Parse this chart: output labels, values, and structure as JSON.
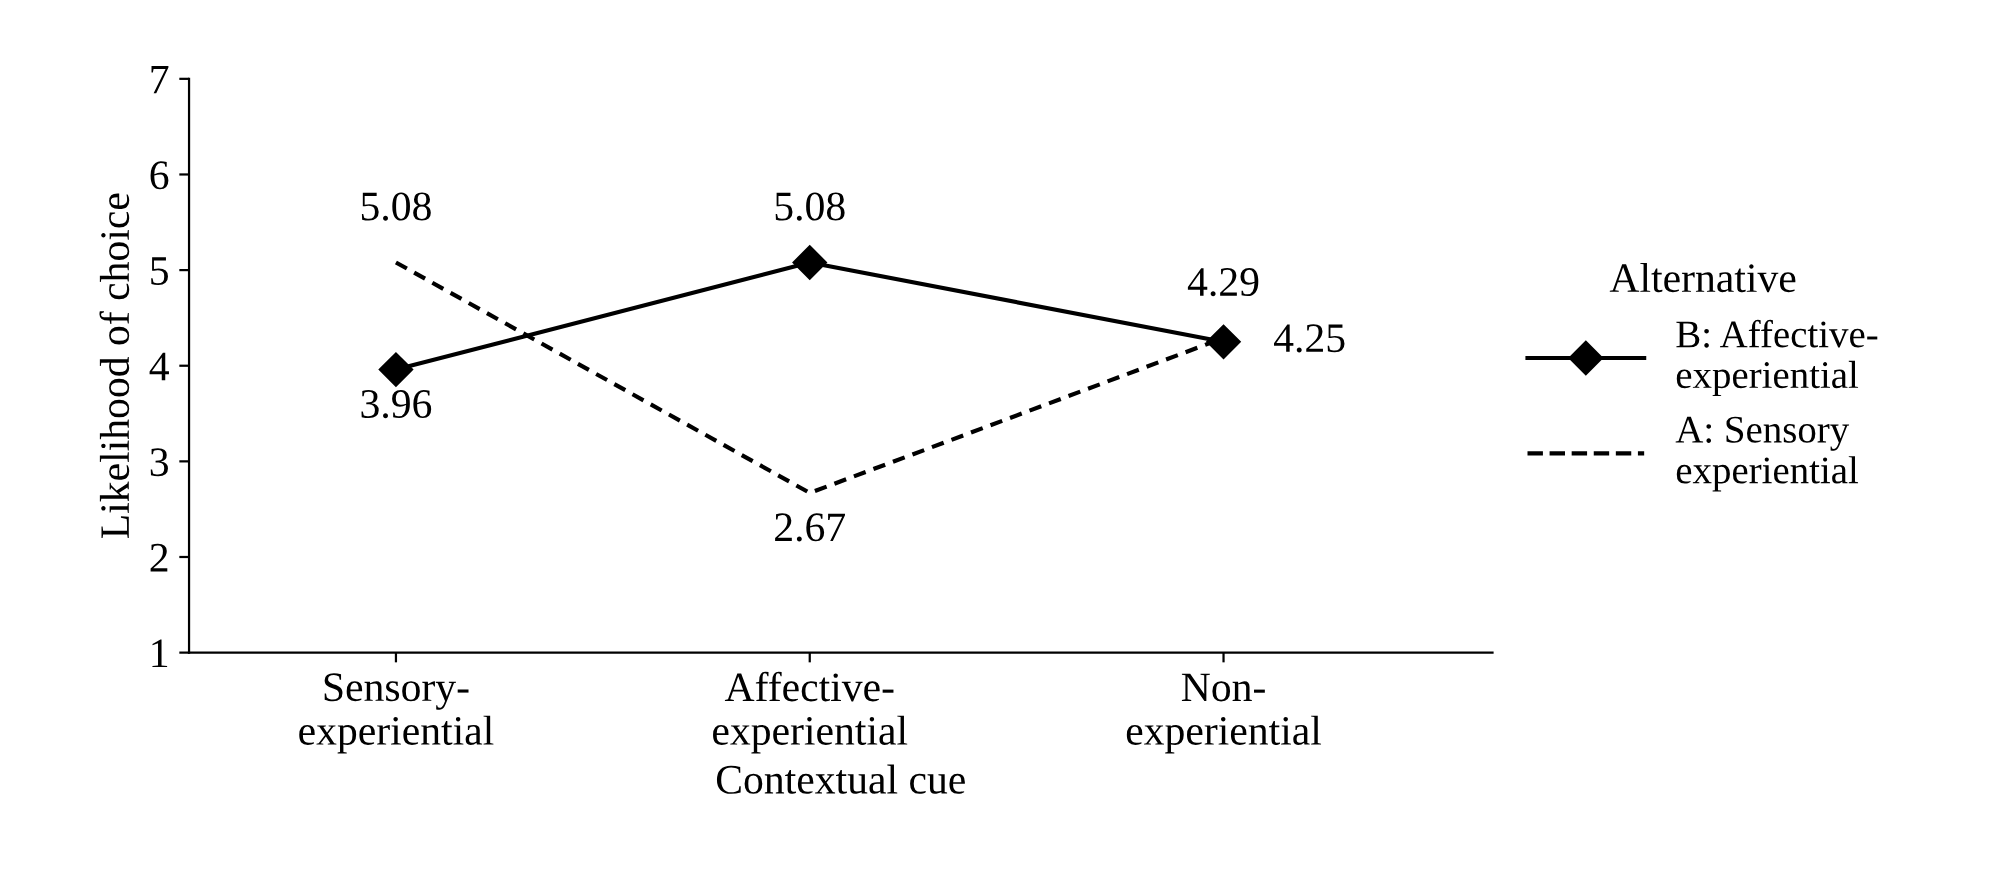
{
  "chart_data": {
    "type": "line",
    "xlabel": "Contextual cue",
    "ylabel": "Likelihood of choice",
    "categories": [
      "Sensory-\nexperiential",
      "Affective-\nexperiential",
      "Non-\nexperiential"
    ],
    "series": [
      {
        "name": "B: Affective-\nexperiential",
        "color": "#000000",
        "values": [
          3.96,
          5.08,
          4.25
        ],
        "marker": "diamond",
        "line_style": "solid"
      },
      {
        "name": "A: Sensory\nexperiential",
        "color": "#000000",
        "values": [
          5.08,
          2.67,
          4.29
        ],
        "marker": "none",
        "line_style": "dashed"
      }
    ],
    "ylim": [
      1,
      7
    ],
    "yticks": [
      1,
      2,
      3,
      4,
      5,
      6,
      7
    ],
    "data_labels": true,
    "grid": false,
    "legend": "right",
    "legend_title": "Alternative"
  }
}
